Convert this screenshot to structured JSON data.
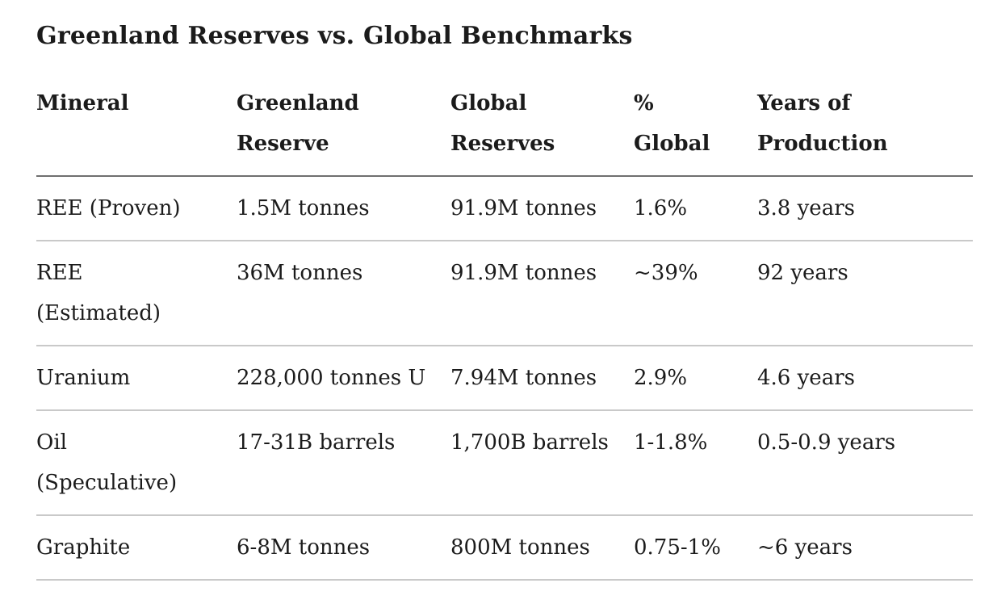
{
  "page": {
    "title": "Greenland Reserves vs. Global Benchmarks"
  },
  "table": {
    "columns": [
      "Mineral",
      "Greenland\nReserve",
      "Global\nReserves",
      "%\nGlobal",
      "Years of\nProduction"
    ],
    "rows": [
      [
        "REE (Proven)",
        "1.5M tonnes",
        "91.9M tonnes",
        "1.6%",
        "3.8 years"
      ],
      [
        "REE\n(Estimated)",
        "36M tonnes",
        "91.9M tonnes",
        "~39%",
        "92 years"
      ],
      [
        "Uranium",
        "228,000 tonnes U",
        "7.94M tonnes",
        "2.9%",
        "4.6 years"
      ],
      [
        "Oil\n(Speculative)",
        "17-31B barrels",
        "1,700B barrels",
        "1-1.8%",
        "0.5-0.9 years"
      ],
      [
        "Graphite",
        "6-8M tonnes",
        "800M tonnes",
        "0.75-1%",
        "~6 years"
      ]
    ]
  },
  "colors": {
    "text": "#1b1b1b",
    "background": "#ffffff",
    "header_rule": "#6f6f6f",
    "row_rule": "#c9c9c9"
  }
}
